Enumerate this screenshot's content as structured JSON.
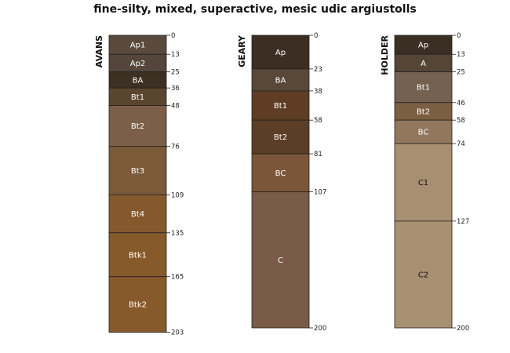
{
  "chart_data": {
    "type": "soil-profile",
    "title": "fine-silty, mixed, superactive, mesic udic argiustolls",
    "depth_unit": "cm",
    "profiles": [
      {
        "name": "AVANS",
        "horizons": [
          {
            "name": "Ap1",
            "top": 0,
            "bottom": 13,
            "color": "#5a4a3c",
            "label_color": "#ffffff"
          },
          {
            "name": "Ap2",
            "top": 13,
            "bottom": 25,
            "color": "#54463a",
            "label_color": "#ffffff"
          },
          {
            "name": "BA",
            "top": 25,
            "bottom": 36,
            "color": "#3c3022",
            "label_color": "#ffffff"
          },
          {
            "name": "Bt1",
            "top": 36,
            "bottom": 48,
            "color": "#5a4630",
            "label_color": "#ffffff"
          },
          {
            "name": "Bt2",
            "top": 48,
            "bottom": 76,
            "color": "#7c5f48",
            "label_color": "#ffffff"
          },
          {
            "name": "Bt3",
            "top": 76,
            "bottom": 109,
            "color": "#7b5a3a",
            "label_color": "#ffffff"
          },
          {
            "name": "Bt4",
            "top": 109,
            "bottom": 135,
            "color": "#85592c",
            "label_color": "#ffffff"
          },
          {
            "name": "Btk1",
            "top": 135,
            "bottom": 165,
            "color": "#875a2c",
            "label_color": "#ffffff"
          },
          {
            "name": "Btk2",
            "top": 165,
            "bottom": 203,
            "color": "#875a2c",
            "label_color": "#ffffff"
          }
        ]
      },
      {
        "name": "GEARY",
        "horizons": [
          {
            "name": "Ap",
            "top": 0,
            "bottom": 23,
            "color": "#3c2e22",
            "label_color": "#ffffff"
          },
          {
            "name": "BA",
            "top": 23,
            "bottom": 38,
            "color": "#594738",
            "label_color": "#ffffff"
          },
          {
            "name": "Bt1",
            "top": 38,
            "bottom": 58,
            "color": "#5e3d24",
            "label_color": "#ffffff"
          },
          {
            "name": "Bt2",
            "top": 58,
            "bottom": 81,
            "color": "#5c3e26",
            "label_color": "#ffffff"
          },
          {
            "name": "BC",
            "top": 81,
            "bottom": 107,
            "color": "#7b5638",
            "label_color": "#ffffff"
          },
          {
            "name": "C",
            "top": 107,
            "bottom": 200,
            "color": "#7a5a48",
            "label_color": "#ffffff"
          }
        ]
      },
      {
        "name": "HOLDER",
        "horizons": [
          {
            "name": "Ap",
            "top": 0,
            "bottom": 13,
            "color": "#3b2e22",
            "label_color": "#ffffff"
          },
          {
            "name": "A",
            "top": 13,
            "bottom": 25,
            "color": "#554535",
            "label_color": "#ffffff"
          },
          {
            "name": "Bt1",
            "top": 25,
            "bottom": 46,
            "color": "#756150",
            "label_color": "#ffffff"
          },
          {
            "name": "Bt2",
            "top": 46,
            "bottom": 58,
            "color": "#7c5e42",
            "label_color": "#ffffff"
          },
          {
            "name": "BC",
            "top": 58,
            "bottom": 74,
            "color": "#92775c",
            "label_color": "#ffffff"
          },
          {
            "name": "C1",
            "top": 74,
            "bottom": 127,
            "color": "#a88f72",
            "label_color": "#111111"
          },
          {
            "name": "C2",
            "top": 127,
            "bottom": 200,
            "color": "#a89073",
            "label_color": "#111111"
          }
        ]
      }
    ]
  }
}
